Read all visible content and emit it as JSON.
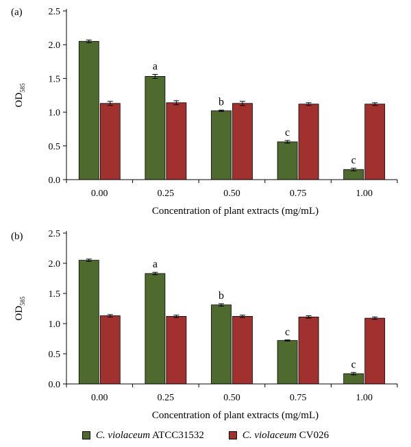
{
  "chart_data": [
    {
      "type": "bar",
      "panel_label": "(a)",
      "categories": [
        "0.00",
        "0.25",
        "0.50",
        "0.75",
        "1.00"
      ],
      "series": [
        {
          "name": "C. violaceum ATCC31532",
          "values": [
            2.05,
            1.53,
            1.02,
            0.56,
            0.15
          ],
          "errors": [
            0.02,
            0.03,
            0.01,
            0.02,
            0.02
          ],
          "color": "#4e6a2e"
        },
        {
          "name": "C. violaceum CV026",
          "values": [
            1.13,
            1.14,
            1.13,
            1.12,
            1.12
          ],
          "errors": [
            0.03,
            0.03,
            0.03,
            0.02,
            0.02
          ],
          "color": "#a0312f"
        }
      ],
      "annotations": [
        "",
        "a",
        "b",
        "c",
        "c"
      ],
      "ylabel_main": "OD",
      "ylabel_sub": "585",
      "xlabel": "Concentration of plant extracts (mg/mL)",
      "ylim": [
        0,
        2.5
      ],
      "yticks": [
        "0.0",
        "0.5",
        "1.0",
        "1.5",
        "2.0",
        "2.5"
      ],
      "grid": false
    },
    {
      "type": "bar",
      "panel_label": "(b)",
      "categories": [
        "0.00",
        "0.25",
        "0.50",
        "0.75",
        "1.00"
      ],
      "series": [
        {
          "name": "C. violaceum ATCC31532",
          "values": [
            2.05,
            1.83,
            1.31,
            0.72,
            0.17
          ],
          "errors": [
            0.02,
            0.02,
            0.02,
            0.01,
            0.02
          ],
          "color": "#4e6a2e"
        },
        {
          "name": "C. violaceum CV026",
          "values": [
            1.13,
            1.12,
            1.12,
            1.11,
            1.09
          ],
          "errors": [
            0.02,
            0.02,
            0.02,
            0.02,
            0.02
          ],
          "color": "#a0312f"
        }
      ],
      "annotations": [
        "",
        "a",
        "b",
        "c",
        "c"
      ],
      "ylabel_main": "OD",
      "ylabel_sub": "585",
      "xlabel": "Concentration of plant extracts (mg/mL)",
      "ylim": [
        0,
        2.5
      ],
      "yticks": [
        "0.0",
        "0.5",
        "1.0",
        "1.5",
        "2.0",
        "2.5"
      ],
      "grid": false
    }
  ],
  "legend": {
    "items": [
      {
        "italic": "C. violaceum",
        "rest": " ATCC31532",
        "color": "#4e6a2e"
      },
      {
        "italic": "C. violaceum",
        "rest": " CV026",
        "color": "#a0312f"
      }
    ]
  }
}
